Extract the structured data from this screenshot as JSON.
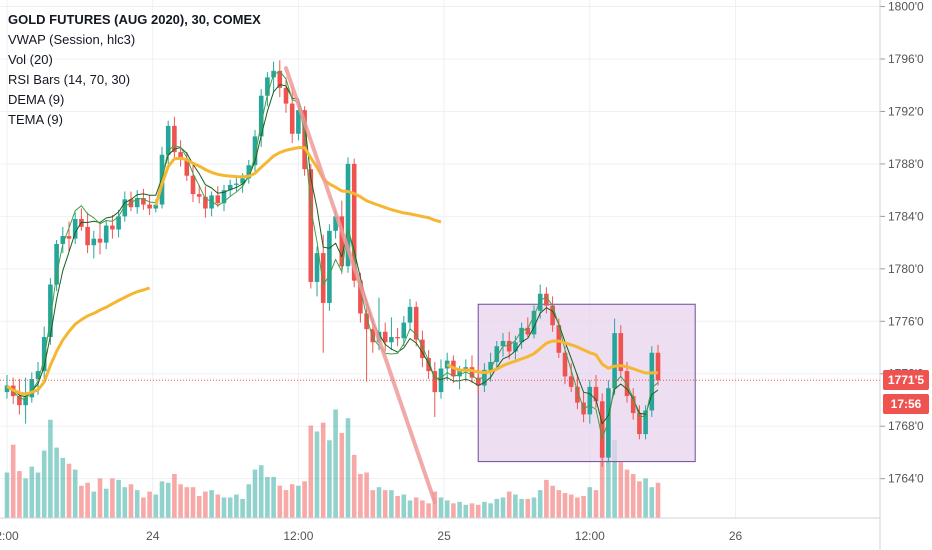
{
  "legend": {
    "title": "GOLD FUTURES (AUG 2020), 30, COMEX",
    "indicators": [
      "VWAP (Session, hlc3)",
      "Vol (20)",
      "RSI Bars (14, 70, 30)",
      "DEMA (9)",
      "TEMA (9)"
    ]
  },
  "price_badge": {
    "value": "1771'5",
    "color": "#ef5350"
  },
  "countdown_badge": {
    "value": "17:56",
    "color": "#ef5350"
  },
  "colors": {
    "up": "#26a69a",
    "down": "#ef5350",
    "vwap": "#f5b731",
    "rect_fill": "#e7d3ee",
    "rect_border": "#6f4a9a",
    "trendline": "#ef9a9a"
  },
  "chart_data": {
    "type": "candlestick",
    "instrument": "GOLD FUTURES (AUG 2020), 30, COMEX",
    "price_axis": {
      "ticks": [
        "1800'0",
        "1796'0",
        "1792'0",
        "1788'0",
        "1784'0",
        "1780'0",
        "1776'0",
        "1772'0",
        "1768'0",
        "1764'0"
      ],
      "range": [
        1761,
        1800.5
      ]
    },
    "time_axis": {
      "ticks": [
        "2:00",
        "24",
        "12:00",
        "25",
        "12:00",
        "26"
      ]
    },
    "current_price": 1771.5,
    "series": [
      {
        "name": "Price",
        "candles": [
          [
            1770.6,
            1771.9,
            1770.1,
            1771.1
          ],
          [
            1771.1,
            1771.7,
            1769.7,
            1770.3
          ],
          [
            1770.3,
            1771.6,
            1768.9,
            1769.6
          ],
          [
            1769.6,
            1771.7,
            1768.2,
            1770.2
          ],
          [
            1770.2,
            1772.1,
            1769.8,
            1771.6
          ],
          [
            1771.6,
            1772.9,
            1770.4,
            1772.2
          ],
          [
            1772.2,
            1775.6,
            1771.6,
            1774.8
          ],
          [
            1774.8,
            1779.3,
            1774.2,
            1778.8
          ],
          [
            1778.8,
            1782.2,
            1778.3,
            1781.9
          ],
          [
            1781.9,
            1783.2,
            1781.2,
            1782.5
          ],
          [
            1782.5,
            1783.6,
            1781.3,
            1782.3
          ],
          [
            1782.3,
            1784.3,
            1781.9,
            1783.8
          ],
          [
            1783.8,
            1784.6,
            1782.9,
            1783.2
          ],
          [
            1783.2,
            1784.3,
            1781.2,
            1781.8
          ],
          [
            1781.8,
            1782.9,
            1780.8,
            1782.3
          ],
          [
            1782.3,
            1783.5,
            1781.1,
            1782.0
          ],
          [
            1782.0,
            1783.7,
            1781.5,
            1783.3
          ],
          [
            1783.3,
            1784.1,
            1782.3,
            1783.0
          ],
          [
            1783.0,
            1784.5,
            1782.4,
            1784.0
          ],
          [
            1784.0,
            1785.9,
            1783.6,
            1785.3
          ],
          [
            1785.3,
            1785.9,
            1784.4,
            1784.7
          ],
          [
            1784.7,
            1786.0,
            1784.2,
            1785.4
          ],
          [
            1785.4,
            1786.1,
            1784.5,
            1784.9
          ],
          [
            1784.9,
            1785.6,
            1784.1,
            1784.6
          ],
          [
            1784.6,
            1785.3,
            1784.3,
            1784.9
          ],
          [
            1784.9,
            1789.3,
            1784.6,
            1788.7
          ],
          [
            1788.7,
            1791.3,
            1788.0,
            1790.9
          ],
          [
            1790.9,
            1791.6,
            1788.5,
            1788.9
          ],
          [
            1788.9,
            1789.8,
            1787.8,
            1788.4
          ],
          [
            1788.4,
            1788.9,
            1786.7,
            1787.1
          ],
          [
            1787.1,
            1788.0,
            1785.1,
            1785.7
          ],
          [
            1785.7,
            1786.4,
            1785.0,
            1785.5
          ],
          [
            1785.5,
            1786.3,
            1783.9,
            1784.6
          ],
          [
            1784.6,
            1785.9,
            1784.0,
            1785.6
          ],
          [
            1785.6,
            1786.3,
            1784.7,
            1785.0
          ],
          [
            1785.0,
            1786.4,
            1784.4,
            1786.0
          ],
          [
            1786.0,
            1786.8,
            1785.5,
            1786.4
          ],
          [
            1786.4,
            1787.1,
            1785.9,
            1786.5
          ],
          [
            1786.5,
            1787.3,
            1785.8,
            1786.9
          ],
          [
            1786.9,
            1788.3,
            1786.5,
            1787.9
          ],
          [
            1787.9,
            1790.6,
            1787.4,
            1790.1
          ],
          [
            1790.1,
            1793.7,
            1789.3,
            1793.2
          ],
          [
            1793.2,
            1795.0,
            1792.4,
            1794.6
          ],
          [
            1794.6,
            1795.8,
            1793.5,
            1795.1
          ],
          [
            1795.1,
            1795.9,
            1793.1,
            1793.8
          ],
          [
            1793.8,
            1794.6,
            1791.9,
            1792.6
          ],
          [
            1792.6,
            1793.9,
            1789.6,
            1790.3
          ],
          [
            1790.3,
            1792.7,
            1789.8,
            1792.1
          ],
          [
            1792.1,
            1792.4,
            1787.1,
            1787.6
          ],
          [
            1787.6,
            1788.0,
            1778.5,
            1779.0
          ],
          [
            1779.0,
            1781.7,
            1777.9,
            1781.2
          ],
          [
            1781.2,
            1782.6,
            1773.6,
            1777.4
          ],
          [
            1777.4,
            1783.4,
            1776.8,
            1782.9
          ],
          [
            1782.9,
            1784.5,
            1782.3,
            1784.0
          ],
          [
            1784.0,
            1785.2,
            1779.6,
            1780.2
          ],
          [
            1780.2,
            1788.5,
            1779.7,
            1788.0
          ],
          [
            1788.0,
            1788.4,
            1778.6,
            1779.1
          ],
          [
            1779.1,
            1779.7,
            1775.9,
            1776.6
          ],
          [
            1776.6,
            1777.3,
            1771.4,
            1775.4
          ],
          [
            1775.4,
            1776.2,
            1773.6,
            1774.4
          ],
          [
            1774.4,
            1777.8,
            1773.8,
            1775.2
          ],
          [
            1775.2,
            1775.9,
            1773.7,
            1774.4
          ],
          [
            1774.4,
            1776.3,
            1773.8,
            1774.8
          ],
          [
            1774.8,
            1775.5,
            1774.1,
            1774.7
          ],
          [
            1774.7,
            1776.4,
            1774.1,
            1775.9
          ],
          [
            1775.9,
            1777.7,
            1775.3,
            1777.1
          ],
          [
            1777.1,
            1777.5,
            1774.1,
            1774.6
          ],
          [
            1774.6,
            1775.3,
            1772.5,
            1773.2
          ],
          [
            1773.2,
            1773.8,
            1771.6,
            1772.2
          ],
          [
            1772.2,
            1772.9,
            1768.7,
            1770.6
          ],
          [
            1770.6,
            1773.1,
            1770.1,
            1772.4
          ],
          [
            1772.4,
            1773.6,
            1771.5,
            1773.0
          ],
          [
            1773.0,
            1773.4,
            1771.3,
            1771.8
          ],
          [
            1771.8,
            1772.6,
            1770.8,
            1772.3
          ],
          [
            1772.3,
            1773.1,
            1771.4,
            1772.5
          ],
          [
            1772.5,
            1773.4,
            1771.3,
            1771.7
          ],
          [
            1771.7,
            1772.6,
            1770.5,
            1771.1
          ],
          [
            1771.1,
            1772.8,
            1770.6,
            1772.3
          ],
          [
            1772.3,
            1773.6,
            1771.4,
            1772.9
          ],
          [
            1772.9,
            1774.5,
            1772.3,
            1774.1
          ],
          [
            1774.1,
            1775.1,
            1773.3,
            1774.5
          ],
          [
            1774.5,
            1775.2,
            1773.1,
            1773.7
          ],
          [
            1773.7,
            1774.9,
            1773.1,
            1774.4
          ],
          [
            1774.4,
            1775.9,
            1773.9,
            1775.5
          ],
          [
            1775.5,
            1776.3,
            1774.8,
            1775.0
          ],
          [
            1775.0,
            1777.2,
            1774.7,
            1776.8
          ],
          [
            1776.8,
            1778.8,
            1776.2,
            1778.1
          ],
          [
            1778.1,
            1778.6,
            1776.6,
            1777.2
          ],
          [
            1777.2,
            1777.9,
            1775.2,
            1775.7
          ],
          [
            1775.7,
            1776.2,
            1773.2,
            1773.6
          ],
          [
            1773.6,
            1774.1,
            1771.2,
            1771.8
          ],
          [
            1771.8,
            1772.8,
            1770.6,
            1771.0
          ],
          [
            1771.0,
            1772.0,
            1769.3,
            1769.8
          ],
          [
            1769.8,
            1770.6,
            1768.3,
            1768.9
          ],
          [
            1768.9,
            1771.5,
            1768.2,
            1771.0
          ],
          [
            1771.0,
            1771.9,
            1769.4,
            1769.9
          ],
          [
            1769.9,
            1770.5,
            1764.9,
            1765.6
          ],
          [
            1765.6,
            1771.5,
            1765.3,
            1770.9
          ],
          [
            1770.9,
            1776.2,
            1770.4,
            1775.1
          ],
          [
            1775.1,
            1775.7,
            1771.7,
            1772.2
          ],
          [
            1772.2,
            1772.9,
            1769.8,
            1770.3
          ],
          [
            1770.3,
            1770.9,
            1768.5,
            1769.0
          ],
          [
            1769.0,
            1769.6,
            1767.0,
            1767.4
          ],
          [
            1767.4,
            1769.6,
            1767.0,
            1769.2
          ],
          [
            1769.2,
            1774.1,
            1768.7,
            1773.6
          ],
          [
            1773.6,
            1774.2,
            1771.1,
            1771.5
          ]
        ]
      },
      {
        "name": "VWAP (Session, hlc3)"
      },
      {
        "name": "DEMA (9)"
      },
      {
        "name": "TEMA (9)"
      },
      {
        "name": "Vol (20)",
        "volume": [
          3.1,
          5.0,
          3.2,
          2.7,
          3.5,
          3.1,
          4.6,
          6.7,
          4.8,
          4.1,
          3.7,
          3.3,
          2.2,
          2.4,
          1.8,
          2.7,
          2.0,
          2.7,
          2.6,
          2.1,
          2.3,
          1.9,
          1.4,
          1.8,
          1.6,
          2.5,
          2.4,
          3.0,
          2.3,
          2.1,
          2.1,
          1.5,
          1.8,
          1.9,
          1.6,
          1.4,
          1.4,
          1.6,
          1.3,
          2.3,
          3.3,
          3.6,
          2.8,
          2.8,
          2.2,
          1.9,
          2.3,
          2.2,
          2.5,
          6.3,
          5.9,
          6.5,
          5.3,
          7.4,
          5.8,
          6.8,
          4.3,
          3.0,
          3.1,
          1.9,
          2.1,
          1.9,
          1.9,
          1.5,
          1.6,
          1.2,
          1.4,
          1.2,
          1.0,
          1.8,
          1.4,
          1.2,
          1.0,
          1.1,
          0.9,
          1.0,
          0.9,
          1.1,
          1.0,
          1.3,
          1.4,
          1.8,
          1.6,
          1.3,
          1.3,
          1.4,
          1.9,
          2.6,
          2.2,
          1.9,
          1.7,
          1.6,
          1.4,
          1.5,
          2.1,
          1.9,
          4.6,
          4.0,
          5.3,
          3.8,
          3.3,
          3.0,
          2.5,
          2.7,
          2.1,
          2.4
        ]
      }
    ],
    "drawings": [
      {
        "type": "rectangle",
        "from": {
          "bar": 76,
          "price": 1777.3
        },
        "to": {
          "bar": 111,
          "price": 1765.3
        }
      },
      {
        "type": "trendline",
        "from": {
          "bar": 45,
          "price": 1795.3
        },
        "to": {
          "bar": 69,
          "price": 1762.2
        }
      }
    ],
    "grid": true
  }
}
